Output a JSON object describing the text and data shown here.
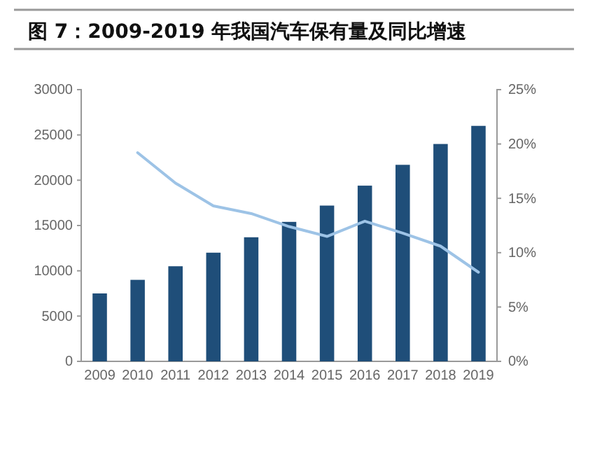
{
  "chart_data": {
    "type": "bar",
    "title": "图 7：2009-2019 年我国汽车保有量及同比增速",
    "categories": [
      "2009",
      "2010",
      "2011",
      "2012",
      "2013",
      "2014",
      "2015",
      "2016",
      "2017",
      "2018",
      "2019"
    ],
    "series": [
      {
        "color": "#1f4e79",
        "values": [
          7500,
          9000,
          10500,
          12000,
          13700,
          15400,
          17200,
          19400,
          21700,
          24000,
          26000
        ]
      },
      {
        "type": "line",
        "axis": "y2",
        "color": "#9dc3e6",
        "values": [
          null,
          19.2,
          16.4,
          14.3,
          13.6,
          12.4,
          11.5,
          12.9,
          11.8,
          10.6,
          8.2
        ]
      }
    ],
    "ylim": [
      0,
      30000
    ],
    "yticks": [
      0,
      5000,
      10000,
      15000,
      20000,
      25000,
      30000
    ],
    "y2lim": [
      0,
      25
    ],
    "y2ticks": [
      {
        "value": 0,
        "label": "0%"
      },
      {
        "value": 5,
        "label": "5%"
      },
      {
        "value": 10,
        "label": "10%"
      },
      {
        "value": 15,
        "label": "15%"
      },
      {
        "value": 20,
        "label": "20%"
      },
      {
        "value": 25,
        "label": "25%"
      }
    ],
    "grid": false,
    "marker": "none",
    "line_style": "solid"
  }
}
